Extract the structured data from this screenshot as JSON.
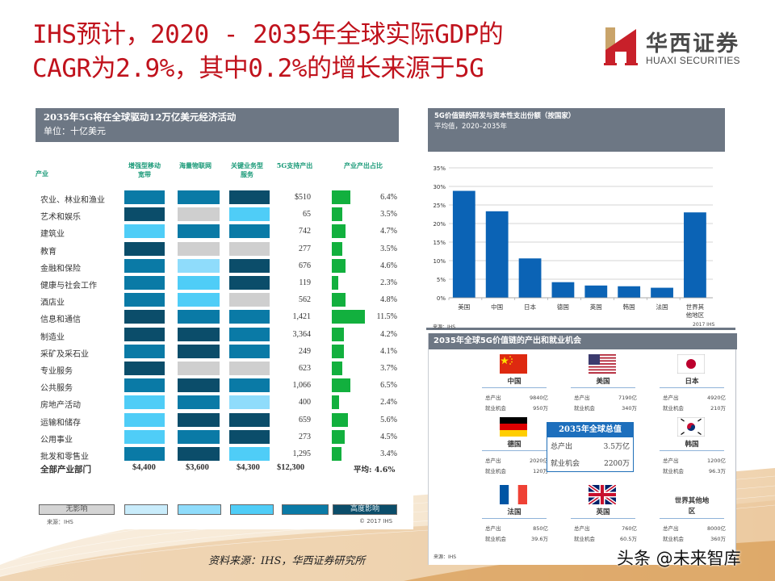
{
  "title": {
    "line1": "IHS预计，2020 - 2035年全球实际GDP的",
    "line2": "CAGR为2.9%，其中0.2%的增长来源于5G"
  },
  "logo": {
    "cn": "华西证券",
    "en": "HUAXI SECURITIES",
    "colors": {
      "red": "#c8202a",
      "gold": "#c9a46a"
    }
  },
  "left_table": {
    "header_title": "2035年5G将在全球驱动12万亿美元经济活动",
    "header_unit": "单位：十亿美元",
    "columns": {
      "industry": "产业",
      "embb": "增强型移动宽带",
      "miot": "海量物联网",
      "mission": "关键业务型服务",
      "output": "5G支持产出",
      "share": "产业产出占比"
    },
    "rows": [
      {
        "industry": "农业、林业和渔业",
        "impact": [
          4,
          4,
          5
        ],
        "output": "$510",
        "share": "6.4%",
        "share_val": 6.4
      },
      {
        "industry": "艺术和娱乐",
        "impact": [
          5,
          0,
          3
        ],
        "output": "65",
        "share": "3.5%",
        "share_val": 3.5
      },
      {
        "industry": "建筑业",
        "impact": [
          3,
          4,
          4
        ],
        "output": "742",
        "share": "4.7%",
        "share_val": 4.7
      },
      {
        "industry": "教育",
        "impact": [
          5,
          0,
          0
        ],
        "output": "277",
        "share": "3.5%",
        "share_val": 3.5
      },
      {
        "industry": "金融和保险",
        "impact": [
          4,
          2,
          5
        ],
        "output": "676",
        "share": "4.6%",
        "share_val": 4.6
      },
      {
        "industry": "健康与社会工作",
        "impact": [
          4,
          3,
          5
        ],
        "output": "119",
        "share": "2.3%",
        "share_val": 2.3
      },
      {
        "industry": "酒店业",
        "impact": [
          4,
          3,
          0
        ],
        "output": "562",
        "share": "4.8%",
        "share_val": 4.8
      },
      {
        "industry": "信息和通信",
        "impact": [
          5,
          4,
          4
        ],
        "output": "1,421",
        "share": "11.5%",
        "share_val": 11.5
      },
      {
        "industry": "制造业",
        "impact": [
          5,
          5,
          4
        ],
        "output": "3,364",
        "share": "4.2%",
        "share_val": 4.2
      },
      {
        "industry": "采矿及采石业",
        "impact": [
          4,
          5,
          4
        ],
        "output": "249",
        "share": "4.1%",
        "share_val": 4.1
      },
      {
        "industry": "专业服务",
        "impact": [
          5,
          0,
          0
        ],
        "output": "623",
        "share": "3.7%",
        "share_val": 3.7
      },
      {
        "industry": "公共服务",
        "impact": [
          4,
          5,
          4
        ],
        "output": "1,066",
        "share": "6.5%",
        "share_val": 6.5
      },
      {
        "industry": "房地产活动",
        "impact": [
          3,
          4,
          2
        ],
        "output": "400",
        "share": "2.4%",
        "share_val": 2.4
      },
      {
        "industry": "运输和储存",
        "impact": [
          3,
          5,
          5
        ],
        "output": "659",
        "share": "5.6%",
        "share_val": 5.6
      },
      {
        "industry": "公用事业",
        "impact": [
          3,
          4,
          5
        ],
        "output": "273",
        "share": "4.5%",
        "share_val": 4.5
      },
      {
        "industry": "批发和零售业",
        "impact": [
          4,
          5,
          3
        ],
        "output": "1,295",
        "share": "3.4%",
        "share_val": 3.4
      }
    ],
    "total": {
      "label": "全部产业部门",
      "embb": "$4,400",
      "miot": "$3,600",
      "mission": "$4,300",
      "output": "$12,300",
      "share": "平均: 4.6%"
    },
    "legend": {
      "low_label": "无影响",
      "high_label": "高度影响",
      "colors": [
        "#cfcfcf",
        "#c9ecfb",
        "#8fdcfb",
        "#4fcdf7",
        "#0a7aa6",
        "#0b4d6a"
      ]
    },
    "source": "来源：IHS",
    "copyright": "© 2017 IHS",
    "share_bar_color": "#12b03e"
  },
  "chart_data": {
    "type": "bar",
    "title": "5G价值链的研发与资本性支出份额（按国家）",
    "subtitle": "平均值，2020–2035年",
    "categories": [
      "美国",
      "中国",
      "日本",
      "德国",
      "英国",
      "韩国",
      "法国",
      "世界其他地区"
    ],
    "values": [
      28.8,
      23.3,
      10.6,
      4.2,
      3.3,
      3.1,
      2.7,
      23.0
    ],
    "xlabel": "",
    "ylabel": "",
    "ylim": [
      0,
      35
    ],
    "yticks": [
      "0%",
      "5%",
      "10%",
      "15%",
      "20%",
      "25%",
      "30%",
      "35%"
    ],
    "grid": true,
    "bar_color": "#0b63b5",
    "source": "来源：IHS",
    "copyright": "2017 IHS"
  },
  "value_chain": {
    "header": "2035年全球5G价值链的产出和就业机会",
    "output_label": "总产出",
    "jobs_label": "就业机会",
    "countries": [
      {
        "name": "中国",
        "output": "9840亿",
        "jobs": "950万",
        "flag": "china"
      },
      {
        "name": "美国",
        "output": "7190亿",
        "jobs": "340万",
        "flag": "usa"
      },
      {
        "name": "日本",
        "output": "4920亿",
        "jobs": "210万",
        "flag": "japan"
      },
      {
        "name": "德国",
        "output": "2020亿",
        "jobs": "120万",
        "flag": "germany"
      },
      {
        "name": "韩国",
        "output": "1200亿",
        "jobs": "96.3万",
        "flag": "korea"
      },
      {
        "name": "法国",
        "output": "850亿",
        "jobs": "39.6万",
        "flag": "france"
      },
      {
        "name": "英国",
        "output": "760亿",
        "jobs": "60.5万",
        "flag": "uk"
      },
      {
        "name": "世界其他地区",
        "output": "8000亿",
        "jobs": "360万",
        "flag": "none"
      }
    ],
    "global": {
      "title": "2035年全球总值",
      "output_label": "总产出",
      "output": "3.5万亿",
      "jobs_label": "就业机会",
      "jobs": "2200万"
    },
    "source": "来源：IHS"
  },
  "footer": {
    "source": "资料来源：IHS，华西证券研究所",
    "watermark": "头条 @未来智库"
  }
}
